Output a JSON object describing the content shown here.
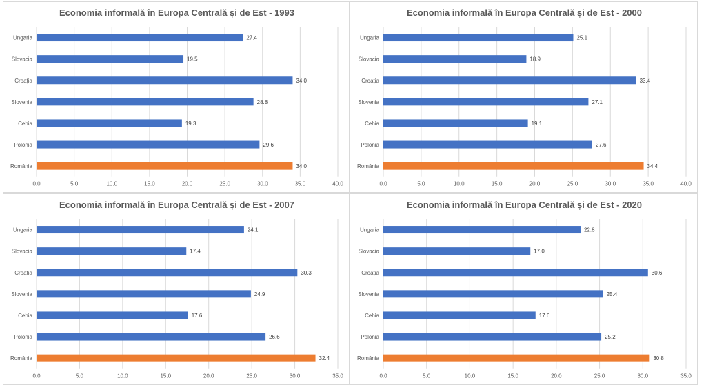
{
  "chart_data": [
    {
      "type": "bar",
      "orientation": "horizontal",
      "title": "Economia informală în Europa Centrală și de Est - 1993",
      "categories": [
        "Ungaria",
        "Slovacia",
        "Croația",
        "Slovenia",
        "Cehia",
        "Polonia",
        "România"
      ],
      "values": [
        27.4,
        19.5,
        34.0,
        28.8,
        19.3,
        29.6,
        34.0
      ],
      "value_labels": [
        "27.4",
        "19.5",
        "34.0",
        "28.8",
        "19.3",
        "29.6",
        "34.0"
      ],
      "bar_colors": [
        "#4472c4",
        "#4472c4",
        "#4472c4",
        "#4472c4",
        "#4472c4",
        "#4472c4",
        "#ed7d31"
      ],
      "xlim": [
        0,
        40
      ],
      "x_ticks": [
        "0.0",
        "5.0",
        "10.0",
        "15.0",
        "20.0",
        "25.0",
        "30.0",
        "35.0",
        "40.0"
      ],
      "grid": true,
      "legend": "none"
    },
    {
      "type": "bar",
      "orientation": "horizontal",
      "title": "Economia informală în Europa Centrală și de Est - 2000",
      "categories": [
        "Ungaria",
        "Slovacia",
        "Croația",
        "Slovenia",
        "Cehia",
        "Polonia",
        "România"
      ],
      "values": [
        25.1,
        18.9,
        33.4,
        27.1,
        19.1,
        27.6,
        34.4
      ],
      "value_labels": [
        "25.1",
        "18.9",
        "33.4",
        "27.1",
        "19.1",
        "27.6",
        "34.4"
      ],
      "bar_colors": [
        "#4472c4",
        "#4472c4",
        "#4472c4",
        "#4472c4",
        "#4472c4",
        "#4472c4",
        "#ed7d31"
      ],
      "xlim": [
        0,
        40
      ],
      "x_ticks": [
        "0.0",
        "5.0",
        "10.0",
        "15.0",
        "20.0",
        "25.0",
        "30.0",
        "35.0",
        "40.0"
      ],
      "grid": true,
      "legend": "none"
    },
    {
      "type": "bar",
      "orientation": "horizontal",
      "title": "Economia informală în Europa Centrală și de Est - 2007",
      "categories": [
        "Ungaria",
        "Slovacia",
        "Croatia",
        "Slovenia",
        "Cehia",
        "Polonia",
        "România"
      ],
      "values": [
        24.1,
        17.4,
        30.3,
        24.9,
        17.6,
        26.6,
        32.4
      ],
      "value_labels": [
        "24.1",
        "17.4",
        "30.3",
        "24.9",
        "17.6",
        "26.6",
        "32.4"
      ],
      "bar_colors": [
        "#4472c4",
        "#4472c4",
        "#4472c4",
        "#4472c4",
        "#4472c4",
        "#4472c4",
        "#ed7d31"
      ],
      "xlim": [
        0,
        35
      ],
      "x_ticks": [
        "0.0",
        "5.0",
        "10.0",
        "15.0",
        "20.0",
        "25.0",
        "30.0",
        "35.0"
      ],
      "grid": true,
      "legend": "none"
    },
    {
      "type": "bar",
      "orientation": "horizontal",
      "title": "Economia informală în Europa Centrală și de Est - 2020",
      "categories": [
        "Ungaria",
        "Slovacia",
        "Croația",
        "Slovenia",
        "Cehia",
        "Polonia",
        "România"
      ],
      "values": [
        22.8,
        17.0,
        30.6,
        25.4,
        17.6,
        25.2,
        30.8
      ],
      "value_labels": [
        "22.8",
        "17.0",
        "30.6",
        "25.4",
        "17.6",
        "25.2",
        "30.8"
      ],
      "bar_colors": [
        "#4472c4",
        "#4472c4",
        "#4472c4",
        "#4472c4",
        "#4472c4",
        "#4472c4",
        "#ed7d31"
      ],
      "xlim": [
        0,
        35
      ],
      "x_ticks": [
        "0.0",
        "5.0",
        "10.0",
        "15.0",
        "20.0",
        "25.0",
        "30.0",
        "35.0"
      ],
      "grid": true,
      "legend": "none"
    }
  ]
}
